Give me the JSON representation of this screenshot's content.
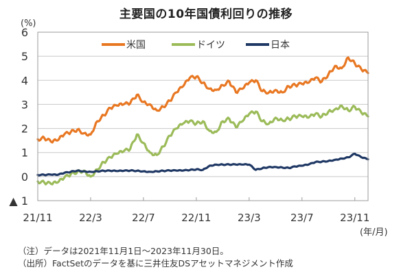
{
  "chart_data": {
    "type": "line",
    "title": "主要国の10年国債利回りの推移",
    "ylabel": "(%)",
    "xlabel": "(年/月)",
    "ylim": [
      -1,
      6
    ],
    "yticks": [
      {
        "value": 6,
        "label": "6"
      },
      {
        "value": 5,
        "label": "5"
      },
      {
        "value": 4,
        "label": "4"
      },
      {
        "value": 3,
        "label": "3"
      },
      {
        "value": 2,
        "label": "2"
      },
      {
        "value": 1,
        "label": "1"
      },
      {
        "value": 0,
        "label": "0"
      },
      {
        "value": -1,
        "label": "▲ 1"
      }
    ],
    "xlim_months": [
      0,
      25
    ],
    "xticks": [
      {
        "month": 0,
        "label": "21/11"
      },
      {
        "month": 4,
        "label": "22/3"
      },
      {
        "month": 8,
        "label": "22/7"
      },
      {
        "month": 12,
        "label": "22/11"
      },
      {
        "month": 16,
        "label": "23/3"
      },
      {
        "month": 20,
        "label": "23/7"
      },
      {
        "month": 24,
        "label": "23/11"
      }
    ],
    "grid": true,
    "legend_position": "top-center",
    "x_months_from_2021_11": [
      0,
      0.5,
      1,
      1.5,
      2,
      2.5,
      3,
      3.5,
      4,
      4.5,
      5,
      5.5,
      6,
      6.5,
      7,
      7.5,
      8,
      8.5,
      9,
      9.5,
      10,
      10.5,
      11,
      11.5,
      12,
      12.5,
      13,
      13.5,
      14,
      14.5,
      15,
      15.5,
      16,
      16.5,
      17,
      17.5,
      18,
      18.5,
      19,
      19.5,
      20,
      20.5,
      21,
      21.5,
      22,
      22.5,
      23,
      23.5,
      24,
      24.5,
      25
    ],
    "series": [
      {
        "name": "米国",
        "color": "#E87722",
        "values": [
          1.55,
          1.6,
          1.45,
          1.5,
          1.75,
          1.85,
          1.95,
          1.8,
          1.75,
          2.3,
          2.55,
          2.85,
          2.95,
          3.0,
          3.05,
          3.4,
          3.1,
          3.0,
          2.75,
          2.9,
          3.15,
          3.5,
          3.75,
          4.1,
          4.15,
          3.9,
          3.65,
          3.6,
          3.8,
          3.95,
          3.5,
          3.65,
          3.9,
          4.0,
          3.55,
          3.5,
          3.6,
          3.5,
          3.75,
          3.8,
          3.85,
          3.9,
          4.1,
          3.95,
          4.25,
          4.6,
          4.5,
          4.95,
          4.7,
          4.45,
          4.3
        ]
      },
      {
        "name": "ドイツ",
        "color": "#9BBB59",
        "values": [
          -0.2,
          -0.25,
          -0.3,
          -0.25,
          -0.05,
          0.1,
          0.2,
          0.25,
          0.0,
          0.3,
          0.6,
          0.8,
          0.95,
          1.05,
          1.15,
          1.75,
          1.4,
          1.0,
          0.9,
          1.25,
          1.7,
          2.0,
          2.2,
          2.3,
          2.2,
          2.3,
          1.9,
          1.85,
          2.3,
          2.4,
          2.05,
          2.3,
          2.6,
          2.7,
          2.3,
          2.2,
          2.45,
          2.35,
          2.4,
          2.5,
          2.5,
          2.45,
          2.6,
          2.5,
          2.7,
          2.8,
          2.95,
          2.75,
          2.9,
          2.65,
          2.5
        ]
      },
      {
        "name": "日本",
        "color": "#1F3864",
        "values": [
          0.07,
          0.07,
          0.08,
          0.07,
          0.15,
          0.2,
          0.25,
          0.22,
          0.2,
          0.22,
          0.24,
          0.24,
          0.23,
          0.24,
          0.25,
          0.24,
          0.22,
          0.2,
          0.22,
          0.24,
          0.25,
          0.25,
          0.25,
          0.27,
          0.3,
          0.28,
          0.45,
          0.5,
          0.5,
          0.5,
          0.5,
          0.5,
          0.5,
          0.28,
          0.35,
          0.4,
          0.4,
          0.38,
          0.36,
          0.42,
          0.45,
          0.5,
          0.6,
          0.62,
          0.65,
          0.7,
          0.75,
          0.8,
          0.95,
          0.8,
          0.72
        ]
      }
    ]
  },
  "notes": {
    "note1": "（注）データは2021年11月1日～2023年11月30日。",
    "note2": "（出所）FactSetのデータを基に三井住友DSアセットマネジメント作成"
  }
}
